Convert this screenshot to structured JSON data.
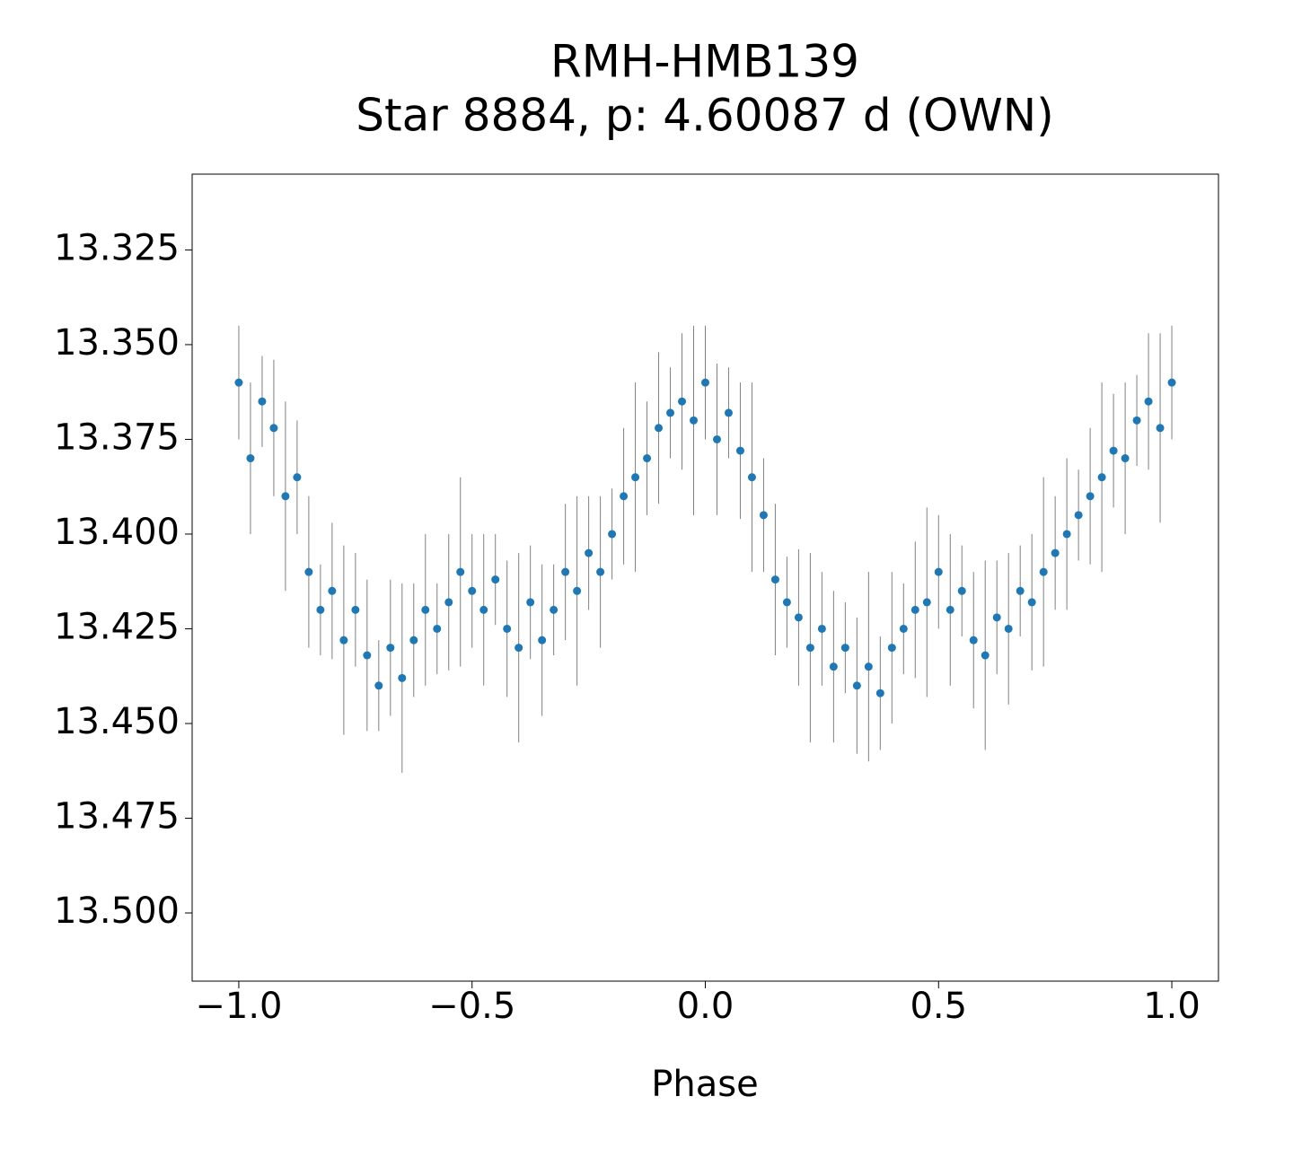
{
  "chart_data": {
    "type": "errorbar-scatter",
    "title": "RMH-HMB139",
    "subtitle": "Star 8884, p: 4.60087 d (OWN)",
    "xlabel": "Phase",
    "color": "#1f77b4",
    "error_color": "#808080",
    "invert_y": true,
    "xlim": [
      -1.1,
      1.1
    ],
    "ylim": [
      13.305,
      13.518
    ],
    "xticks": [
      {
        "value": -1.0,
        "label": "−1.0"
      },
      {
        "value": -0.5,
        "label": "−0.5"
      },
      {
        "value": 0.0,
        "label": "0.0"
      },
      0.5,
      {
        "value": 1.0,
        "label": "1.0"
      }
    ],
    "yticks": [
      13.325,
      {
        "value": 13.35,
        "label": "13.350"
      },
      13.375,
      {
        "value": 13.4,
        "label": "13.400"
      },
      13.425,
      {
        "value": 13.45,
        "label": "13.450"
      },
      13.475,
      {
        "value": 13.5,
        "label": "13.500"
      }
    ],
    "x": [
      -1.0,
      -0.975,
      -0.95,
      -0.925,
      -0.9,
      -0.875,
      -0.85,
      -0.825,
      -0.8,
      -0.775,
      -0.75,
      -0.725,
      -0.7,
      -0.675,
      -0.65,
      -0.625,
      -0.6,
      -0.575,
      -0.55,
      -0.525,
      -0.5,
      -0.475,
      -0.45,
      -0.425,
      -0.4,
      -0.375,
      -0.35,
      -0.325,
      -0.3,
      -0.275,
      -0.25,
      -0.225,
      -0.2,
      -0.175,
      -0.15,
      -0.125,
      -0.1,
      -0.075,
      -0.05,
      -0.025,
      0.0,
      0.025,
      0.05,
      0.075,
      0.1,
      0.125,
      0.15,
      0.175,
      0.2,
      0.225,
      0.25,
      0.275,
      0.3,
      0.325,
      0.35,
      0.375,
      0.4,
      0.425,
      0.45,
      0.475,
      0.5,
      0.525,
      0.55,
      0.575,
      0.6,
      0.625,
      0.65,
      0.675,
      0.7,
      0.725,
      0.75,
      0.775,
      0.8,
      0.825,
      0.85,
      0.875,
      0.9,
      0.925,
      0.95,
      0.975,
      1.0
    ],
    "values": [
      13.36,
      13.38,
      13.365,
      13.372,
      13.39,
      13.385,
      13.41,
      13.42,
      13.415,
      13.428,
      13.42,
      13.432,
      13.44,
      13.43,
      13.438,
      13.428,
      13.42,
      13.425,
      13.418,
      13.41,
      13.415,
      13.42,
      13.412,
      13.425,
      13.43,
      13.418,
      13.428,
      13.42,
      13.41,
      13.415,
      13.405,
      13.41,
      13.4,
      13.39,
      13.385,
      13.38,
      13.372,
      13.368,
      13.365,
      13.37,
      13.36,
      13.375,
      13.368,
      13.378,
      13.385,
      13.395,
      13.412,
      13.418,
      13.422,
      13.43,
      13.425,
      13.435,
      13.43,
      13.44,
      13.435,
      13.442,
      13.43,
      13.425,
      13.42,
      13.418,
      13.41,
      13.42,
      13.415,
      13.428,
      13.432,
      13.422,
      13.425,
      13.415,
      13.418,
      13.41,
      13.405,
      13.4,
      13.395,
      13.39,
      13.385,
      13.378,
      13.38,
      13.37,
      13.365,
      13.372,
      13.36
    ],
    "errors": [
      0.015,
      0.02,
      0.012,
      0.018,
      0.025,
      0.015,
      0.02,
      0.012,
      0.018,
      0.025,
      0.015,
      0.02,
      0.012,
      0.018,
      0.025,
      0.015,
      0.02,
      0.012,
      0.018,
      0.025,
      0.015,
      0.02,
      0.012,
      0.018,
      0.025,
      0.015,
      0.02,
      0.012,
      0.018,
      0.025,
      0.015,
      0.02,
      0.012,
      0.018,
      0.025,
      0.015,
      0.02,
      0.012,
      0.018,
      0.025,
      0.015,
      0.02,
      0.012,
      0.018,
      0.025,
      0.015,
      0.02,
      0.012,
      0.018,
      0.025,
      0.015,
      0.02,
      0.012,
      0.018,
      0.025,
      0.015,
      0.02,
      0.012,
      0.018,
      0.025,
      0.015,
      0.02,
      0.012,
      0.018,
      0.025,
      0.015,
      0.02,
      0.012,
      0.018,
      0.025,
      0.015,
      0.02,
      0.012,
      0.018,
      0.025,
      0.015,
      0.02,
      0.012,
      0.018,
      0.025,
      0.015
    ]
  }
}
